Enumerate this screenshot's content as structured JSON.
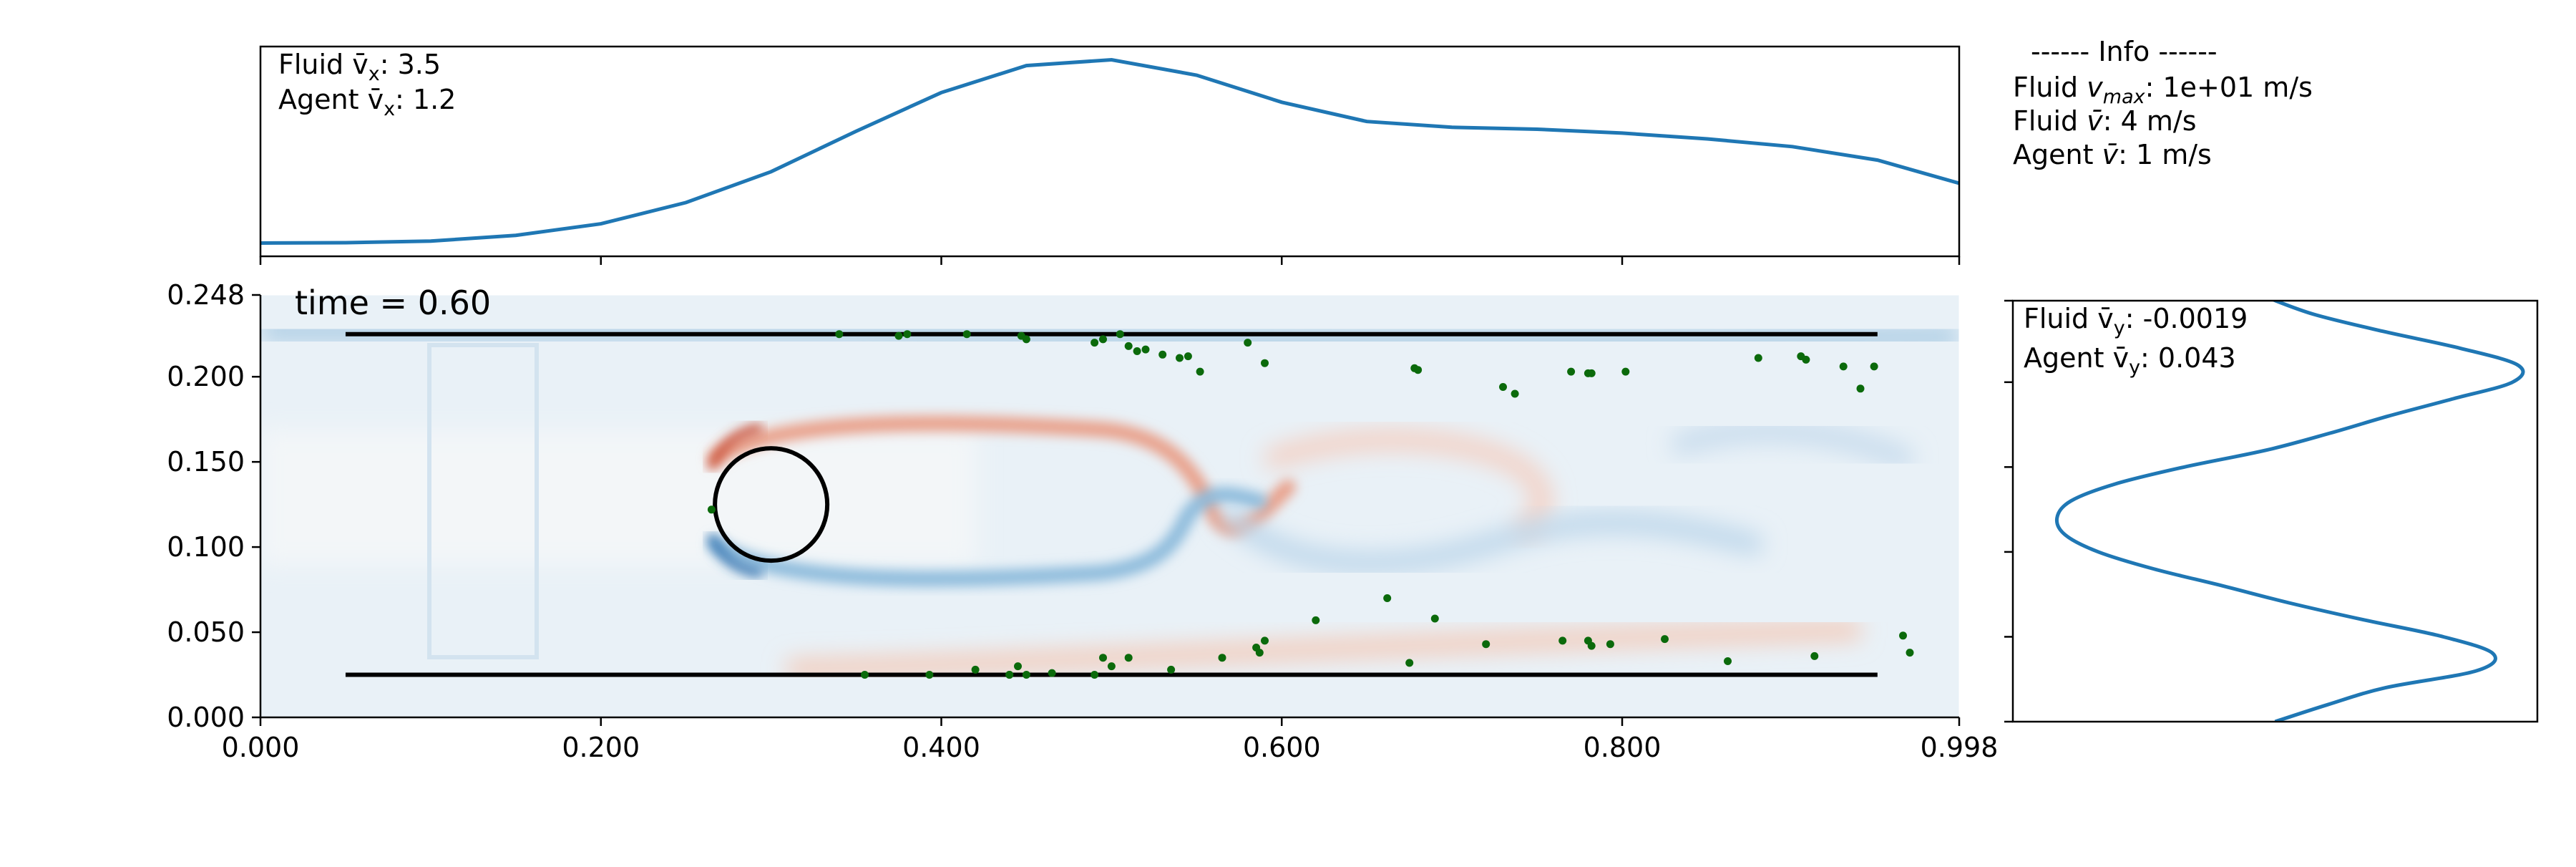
{
  "colors": {
    "curve": "#1f77b4",
    "agent": "#0b6a0b",
    "walls": "#000000",
    "field_red": "#d6604d",
    "field_blue": "#4393c3",
    "field_bg": "#e8f0f6"
  },
  "chart_data": [
    {
      "id": "velocity-x-profile",
      "type": "line",
      "title": "",
      "annotations": [
        "Fluid v̄x: 3.5",
        "Agent v̄x: 1.2"
      ],
      "x_range": [
        0.0,
        0.998
      ],
      "x": [
        0.0,
        0.05,
        0.1,
        0.15,
        0.2,
        0.25,
        0.3,
        0.35,
        0.4,
        0.45,
        0.5,
        0.55,
        0.6,
        0.65,
        0.7,
        0.75,
        0.8,
        0.85,
        0.9,
        0.95,
        0.998
      ],
      "y": [
        0.5,
        0.52,
        0.6,
        0.9,
        1.5,
        2.6,
        4.2,
        6.3,
        8.3,
        9.7,
        10.0,
        9.2,
        7.8,
        6.8,
        6.5,
        6.4,
        6.2,
        5.9,
        5.5,
        4.8,
        3.6
      ],
      "ylim": [
        0.0,
        10.5
      ]
    },
    {
      "id": "flow-field",
      "type": "heatmap",
      "time_label": "time = 0.60",
      "xlim": [
        0.0,
        0.998
      ],
      "ylim": [
        0.0,
        0.248
      ],
      "x_ticks": [
        "0.000",
        "0.200",
        "0.400",
        "0.600",
        "0.800",
        "0.998"
      ],
      "x_tick_values": [
        0.0,
        0.2,
        0.4,
        0.6,
        0.8,
        0.998
      ],
      "y_ticks": [
        "0.000",
        "0.050",
        "0.100",
        "0.150",
        "0.200",
        "0.248"
      ],
      "y_tick_values": [
        0.0,
        0.05,
        0.1,
        0.15,
        0.2,
        0.248
      ],
      "walls": [
        {
          "x0": 0.05,
          "x1": 0.95,
          "y": 0.225
        },
        {
          "x0": 0.05,
          "x1": 0.95,
          "y": 0.025
        }
      ],
      "obstacle": {
        "cx": 0.3,
        "cy": 0.125,
        "r": 0.033
      },
      "agents": [
        [
          0.34,
          0.225
        ],
        [
          0.375,
          0.224
        ],
        [
          0.38,
          0.225
        ],
        [
          0.415,
          0.225
        ],
        [
          0.447,
          0.224
        ],
        [
          0.45,
          0.222
        ],
        [
          0.49,
          0.22
        ],
        [
          0.495,
          0.222
        ],
        [
          0.505,
          0.225
        ],
        [
          0.51,
          0.218
        ],
        [
          0.515,
          0.215
        ],
        [
          0.52,
          0.216
        ],
        [
          0.53,
          0.213
        ],
        [
          0.54,
          0.211
        ],
        [
          0.545,
          0.212
        ],
        [
          0.552,
          0.203
        ],
        [
          0.58,
          0.22
        ],
        [
          0.59,
          0.208
        ],
        [
          0.678,
          0.205
        ],
        [
          0.68,
          0.204
        ],
        [
          0.73,
          0.194
        ],
        [
          0.737,
          0.19
        ],
        [
          0.77,
          0.203
        ],
        [
          0.78,
          0.202
        ],
        [
          0.782,
          0.202
        ],
        [
          0.802,
          0.203
        ],
        [
          0.88,
          0.211
        ],
        [
          0.905,
          0.212
        ],
        [
          0.908,
          0.21
        ],
        [
          0.93,
          0.206
        ],
        [
          0.94,
          0.193
        ],
        [
          0.948,
          0.206
        ],
        [
          0.265,
          0.122
        ],
        [
          0.662,
          0.07
        ],
        [
          0.69,
          0.058
        ],
        [
          0.62,
          0.057
        ],
        [
          0.72,
          0.043
        ],
        [
          0.765,
          0.045
        ],
        [
          0.78,
          0.045
        ],
        [
          0.782,
          0.042
        ],
        [
          0.793,
          0.043
        ],
        [
          0.825,
          0.046
        ],
        [
          0.59,
          0.045
        ],
        [
          0.585,
          0.041
        ],
        [
          0.587,
          0.038
        ],
        [
          0.565,
          0.035
        ],
        [
          0.675,
          0.032
        ],
        [
          0.862,
          0.033
        ],
        [
          0.913,
          0.036
        ],
        [
          0.965,
          0.048
        ],
        [
          0.969,
          0.038
        ],
        [
          0.355,
          0.025
        ],
        [
          0.393,
          0.025
        ],
        [
          0.42,
          0.028
        ],
        [
          0.44,
          0.025
        ],
        [
          0.445,
          0.03
        ],
        [
          0.45,
          0.025
        ],
        [
          0.465,
          0.026
        ],
        [
          0.49,
          0.025
        ],
        [
          0.495,
          0.035
        ],
        [
          0.5,
          0.03
        ],
        [
          0.51,
          0.035
        ],
        [
          0.535,
          0.028
        ],
        [
          0.44,
          0.025
        ]
      ]
    },
    {
      "id": "velocity-y-profile",
      "type": "line",
      "annotations": [
        "Fluid v̄y: -0.0019",
        "Agent v̄y: 0.043"
      ],
      "comment": "horizontal axis is velocity, vertical axis is y position",
      "y_pos": [
        0.0,
        0.01,
        0.02,
        0.03,
        0.04,
        0.05,
        0.06,
        0.07,
        0.08,
        0.09,
        0.1,
        0.11,
        0.12,
        0.13,
        0.14,
        0.15,
        0.16,
        0.17,
        0.18,
        0.19,
        0.2,
        0.21,
        0.22,
        0.23,
        0.24,
        0.25
      ],
      "v": [
        0.5,
        2.4,
        4.5,
        7.8,
        8.4,
        6.6,
        3.7,
        1.0,
        -1.4,
        -3.9,
        -5.9,
        -7.1,
        -7.4,
        -6.9,
        -5.3,
        -2.8,
        0.2,
        2.5,
        4.6,
        6.9,
        9.1,
        9.3,
        7.2,
        4.4,
        1.9,
        0.2
      ],
      "vlim": [
        -9.0,
        10.0
      ],
      "ylim": [
        0.0,
        0.248
      ]
    }
  ],
  "info": {
    "header": "------ Info ------",
    "fluid_vmax": {
      "prefix": "Fluid ",
      "sym": "v",
      "sub": "max",
      "suffix": ": 1e+01 m/s"
    },
    "fluid_vbar": {
      "prefix": "Fluid ",
      "sym": "v̄",
      "suffix": ": 4 m/s"
    },
    "agent_vbar": {
      "prefix": "Agent ",
      "sym": "v̄",
      "suffix": ": 1 m/s"
    }
  },
  "top_stats": {
    "fluid": {
      "prefix": "Fluid ",
      "sym": "v̄",
      "sub": "x",
      "suffix": ": 3.5"
    },
    "agent": {
      "prefix": "Agent ",
      "sym": "v̄",
      "sub": "x",
      "suffix": ": 1.2"
    }
  },
  "right_stats": {
    "fluid": {
      "prefix": "Fluid ",
      "sym": "v̄",
      "sub": "y",
      "suffix": ": -0.0019"
    },
    "agent": {
      "prefix": "Agent ",
      "sym": "v̄",
      "sub": "y",
      "suffix": ": 0.043"
    }
  }
}
